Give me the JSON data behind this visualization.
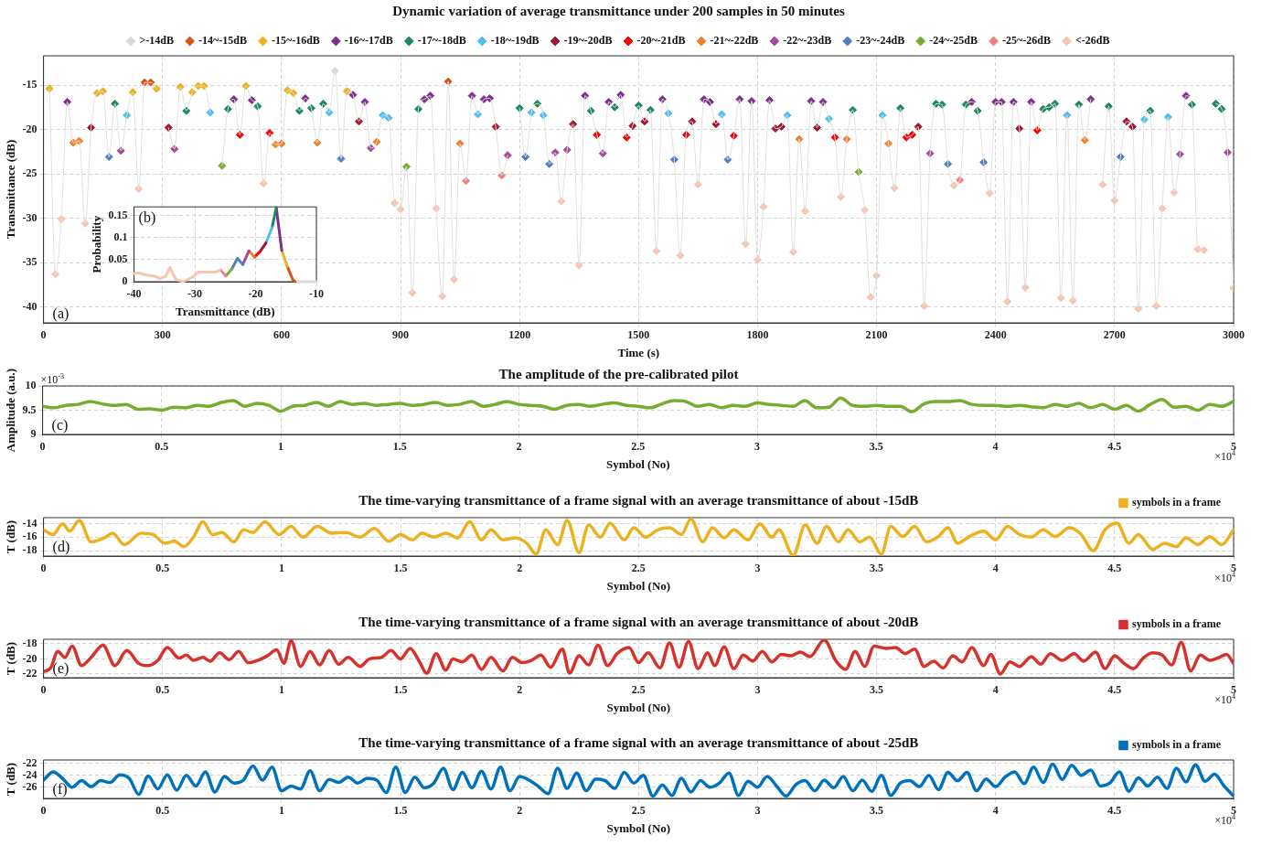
{
  "chart_data": [
    {
      "type": "scatter",
      "title": "Dynamic variation of average transmittance under 200 samples in 50 minutes",
      "xlabel": "Time (s)",
      "ylabel": "Transmittance (dB)",
      "annotations": [
        "(a)"
      ],
      "marker": "diamond",
      "grid": true,
      "legend": "top",
      "xlim": [
        0,
        3000
      ],
      "xticks": [
        0,
        300,
        600,
        900,
        1200,
        1500,
        1800,
        2100,
        2400,
        2700,
        3000
      ],
      "ylim": [
        -41.8,
        -11.7
      ],
      "yticks": [
        -40,
        -35,
        -30,
        -25,
        -20,
        -15
      ],
      "x": [
        15,
        30,
        45,
        60,
        75,
        90,
        105,
        120,
        135,
        150,
        165,
        180,
        195,
        210,
        225,
        240,
        255,
        270,
        285,
        300,
        315,
        330,
        345,
        360,
        375,
        390,
        405,
        420,
        435,
        450,
        465,
        480,
        495,
        510,
        525,
        540,
        555,
        570,
        585,
        600,
        615,
        630,
        645,
        660,
        675,
        690,
        705,
        720,
        735,
        750,
        765,
        780,
        795,
        810,
        825,
        840,
        855,
        870,
        885,
        900,
        915,
        930,
        945,
        960,
        975,
        990,
        1005,
        1020,
        1035,
        1050,
        1065,
        1080,
        1095,
        1110,
        1125,
        1140,
        1155,
        1170,
        1185,
        1200,
        1215,
        1230,
        1245,
        1260,
        1275,
        1290,
        1305,
        1320,
        1335,
        1350,
        1365,
        1380,
        1395,
        1410,
        1425,
        1440,
        1455,
        1470,
        1485,
        1500,
        1515,
        1530,
        1545,
        1560,
        1575,
        1590,
        1605,
        1620,
        1635,
        1650,
        1665,
        1680,
        1695,
        1710,
        1725,
        1740,
        1755,
        1770,
        1785,
        1800,
        1815,
        1830,
        1845,
        1860,
        1875,
        1890,
        1905,
        1920,
        1935,
        1950,
        1965,
        1980,
        1995,
        2010,
        2025,
        2040,
        2055,
        2070,
        2085,
        2100,
        2115,
        2130,
        2145,
        2160,
        2175,
        2190,
        2205,
        2220,
        2235,
        2250,
        2265,
        2280,
        2295,
        2310,
        2325,
        2340,
        2355,
        2370,
        2385,
        2400,
        2415,
        2430,
        2445,
        2460,
        2475,
        2490,
        2505,
        2520,
        2535,
        2550,
        2565,
        2580,
        2595,
        2610,
        2625,
        2640,
        2655,
        2670,
        2685,
        2700,
        2715,
        2730,
        2745,
        2760,
        2775,
        2790,
        2805,
        2820,
        2835,
        2850,
        2865,
        2880,
        2895,
        2910,
        2925,
        2940,
        2955,
        2970,
        2985,
        3000
      ],
      "series": [
        {
          "type": "line",
          "marker": "none",
          "color": "#e0e0e0",
          "values": [
            -15.4,
            -36.3,
            -30.1,
            -16.9,
            -21.5,
            -21.3,
            -30.6,
            -19.8,
            -15.9,
            -15.7,
            -23.1,
            -17.1,
            -22.4,
            -18.4,
            -15.8,
            -26.7,
            -14.7,
            -14.7,
            -15.4,
            null,
            -19.8,
            -22.2,
            -15.2,
            -17.9,
            -15.8,
            -15.1,
            -15.1,
            -18.1,
            null,
            -24.1,
            -17.7,
            -16.6,
            -20.6,
            -15.1,
            -16.7,
            -17.4,
            -26.1,
            -20.4,
            -21.7,
            -21.6,
            -15.6,
            -15.9,
            -17.9,
            -16.5,
            -17.6,
            -21.5,
            -17.1,
            -18.1,
            -13.4,
            -23.3,
            -15.7,
            -16.1,
            -19.1,
            -16.9,
            -22.1,
            -21.4,
            -18.4,
            -18.7,
            -28.3,
            -29.0,
            -24.2,
            -38.4,
            -17.7,
            -16.6,
            -16.2,
            -28.9,
            -38.8,
            -14.6,
            -36.9,
            -21.6,
            -25.8,
            -16.2,
            -18.3,
            -16.6,
            -16.5,
            -19.7,
            -25.2,
            -22.9,
            null,
            -17.6,
            -23.1,
            -18.1,
            -17.1,
            -18.4,
            -23.9,
            -22.6,
            -28.1,
            -22.3,
            -19.4,
            -35.3,
            -16.2,
            -17.9,
            -20.6,
            -22.7,
            -16.9,
            -17.5,
            -16.1,
            -20.9,
            -19.6,
            -17.3,
            -19.1,
            -17.8,
            -33.7,
            -16.6,
            -18.2,
            -23.4,
            -34.2,
            -20.6,
            -19.1,
            -26.2,
            -16.6,
            -16.9,
            -19.4,
            -18.3,
            -23.4,
            -20.7,
            -16.6,
            -32.9,
            -16.8,
            -34.7,
            -28.7,
            -16.7,
            -19.9,
            -19.7,
            -18.4,
            -33.8,
            -21.1,
            -29.2,
            -16.8,
            -19.8,
            -16.9,
            -18.8,
            -20.9,
            -27.6,
            -21.1,
            -17.8,
            -24.8,
            -29.1,
            -38.9,
            -36.5,
            -18.4,
            -21.6,
            -26.6,
            -17.6,
            -20.9,
            -20.6,
            -19.7,
            -39.9,
            -22.7,
            -17.1,
            -17.2,
            -23.9,
            -26.3,
            -25.7,
            -17.2,
            -16.9,
            -17.9,
            -23.7,
            -27.2,
            -16.9,
            -16.9,
            -39.4,
            -16.9,
            -19.9,
            -37.8,
            -16.9,
            -20.1,
            -17.7,
            -17.5,
            -17.1,
            -39.0,
            -18.4,
            -39.3,
            -17.2,
            -21.2,
            -16.6,
            null,
            -26.2,
            -17.4,
            -28.0,
            -23.1,
            -19.1,
            -19.7,
            -40.2,
            -18.9,
            -17.9,
            -39.9,
            -28.9,
            -18.6,
            -27.1,
            -22.8,
            -16.2,
            -17.2,
            -33.5,
            -33.6,
            null,
            -17.1,
            -17.7,
            -22.6,
            -37.9
          ]
        },
        {
          "name": ">-14dB",
          "color": "#d9d9d9",
          "x": [
            735
          ],
          "values": [
            -13.4
          ]
        },
        {
          "name": "-14~-15dB",
          "color": "#d95319",
          "x": [
            255,
            270,
            1020
          ],
          "values": [
            -14.7,
            -14.7,
            -14.6
          ]
        },
        {
          "name": "-15~-16dB",
          "color": "#edb120",
          "x": [
            15,
            135,
            150,
            225,
            285,
            345,
            375,
            390,
            405,
            510,
            615,
            630,
            765
          ],
          "values": [
            -15.4,
            -15.9,
            -15.7,
            -15.8,
            -15.4,
            -15.2,
            -15.8,
            -15.1,
            -15.1,
            -15.1,
            -15.6,
            -15.9,
            -15.7
          ]
        },
        {
          "name": "-16~-17dB",
          "color": "#7e2f8e",
          "x": [
            60,
            480,
            525,
            660,
            780,
            810,
            960,
            975,
            1080,
            1110,
            1125,
            1365,
            1425,
            1455,
            1560,
            1665,
            1680,
            1755,
            1785,
            1830,
            1935,
            1965,
            2340,
            2400,
            2415,
            2445,
            2490,
            2640,
            2880
          ],
          "values": [
            -16.9,
            -16.6,
            -16.7,
            -16.5,
            -16.1,
            -16.9,
            -16.6,
            -16.2,
            -16.2,
            -16.6,
            -16.5,
            -16.2,
            -16.9,
            -16.1,
            -16.6,
            -16.6,
            -16.9,
            -16.6,
            -16.8,
            -16.7,
            -16.8,
            -16.9,
            -16.9,
            -16.9,
            -16.9,
            -16.9,
            -16.9,
            -16.6,
            -16.2
          ]
        },
        {
          "name": "-17~-18dB",
          "color": "#1b8a5a",
          "x": [
            180,
            360,
            465,
            540,
            645,
            675,
            705,
            945,
            1200,
            1245,
            1380,
            1440,
            1500,
            1530,
            2040,
            2160,
            2250,
            2265,
            2325,
            2355,
            2520,
            2535,
            2550,
            2610,
            2685,
            2790,
            2895,
            2955,
            2970
          ],
          "values": [
            -17.1,
            -17.9,
            -17.7,
            -17.4,
            -17.9,
            -17.6,
            -17.1,
            -17.7,
            -17.6,
            -17.1,
            -17.9,
            -17.5,
            -17.3,
            -17.8,
            -17.8,
            -17.6,
            -17.1,
            -17.2,
            -17.2,
            -17.9,
            -17.7,
            -17.5,
            -17.1,
            -17.2,
            -17.4,
            -17.9,
            -17.2,
            -17.1,
            -17.7
          ]
        },
        {
          "name": "-18~-19dB",
          "color": "#4dbeee",
          "x": [
            210,
            420,
            720,
            855,
            870,
            1095,
            1230,
            1260,
            1575,
            1710,
            1875,
            1980,
            2115,
            2580,
            2775,
            2835
          ],
          "values": [
            -18.4,
            -18.1,
            -18.1,
            -18.4,
            -18.7,
            -18.3,
            -18.1,
            -18.4,
            -18.2,
            -18.3,
            -18.4,
            -18.8,
            -18.4,
            -18.4,
            -18.9,
            -18.6
          ]
        },
        {
          "name": "-19~-20dB",
          "color": "#a2142f",
          "x": [
            120,
            315,
            795,
            1140,
            1335,
            1485,
            1515,
            1635,
            1695,
            1845,
            1860,
            1950,
            2205,
            2460,
            2730,
            2745
          ],
          "values": [
            -19.8,
            -19.8,
            -19.1,
            -19.7,
            -19.4,
            -19.6,
            -19.1,
            -19.1,
            -19.4,
            -19.9,
            -19.7,
            -19.8,
            -19.7,
            -19.9,
            -19.1,
            -19.7
          ]
        },
        {
          "name": "-20~-21dB",
          "color": "#ff0000",
          "x": [
            495,
            570,
            1395,
            1470,
            1620,
            1740,
            1995,
            2175,
            2190,
            2505
          ],
          "values": [
            -20.6,
            -20.4,
            -20.6,
            -20.9,
            -20.6,
            -20.7,
            -20.9,
            -20.9,
            -20.6,
            -20.1
          ]
        },
        {
          "name": "-21~-22dB",
          "color": "#f4802b",
          "x": [
            75,
            90,
            585,
            600,
            690,
            840,
            1050,
            1905,
            2025,
            2130,
            2625
          ],
          "values": [
            -21.5,
            -21.3,
            -21.7,
            -21.6,
            -21.5,
            -21.4,
            -21.6,
            -21.1,
            -21.1,
            -21.6,
            -21.2
          ]
        },
        {
          "name": "-22~-23dB",
          "color": "#a24b9c",
          "x": [
            195,
            330,
            825,
            1170,
            1290,
            1320,
            1410,
            2235,
            2865,
            2985
          ],
          "values": [
            -22.4,
            -22.2,
            -22.1,
            -22.9,
            -22.6,
            -22.3,
            -22.7,
            -22.7,
            -22.8,
            -22.6
          ]
        },
        {
          "name": "-23~-24dB",
          "color": "#4f7fbf",
          "x": [
            165,
            750,
            1215,
            1275,
            1590,
            1725,
            2280,
            2370,
            2715
          ],
          "values": [
            -23.1,
            -23.3,
            -23.1,
            -23.9,
            -23.4,
            -23.4,
            -23.9,
            -23.7,
            -23.1
          ]
        },
        {
          "name": "-24~-25dB",
          "color": "#77ac30",
          "x": [
            450,
            915,
            2055
          ],
          "values": [
            -24.1,
            -24.2,
            -24.8
          ]
        },
        {
          "name": "-25~-26dB",
          "color": "#f08080",
          "x": [
            1065,
            1155,
            2310
          ],
          "values": [
            -25.8,
            -25.2,
            -25.7
          ]
        },
        {
          "name": "<-26dB",
          "color": "#f8c4ae",
          "x": [
            30,
            45,
            105,
            240,
            555,
            885,
            900,
            930,
            990,
            1005,
            1035,
            1305,
            1350,
            1545,
            1605,
            1650,
            1770,
            1800,
            1815,
            1890,
            1920,
            2010,
            2070,
            2085,
            2100,
            2145,
            2220,
            2295,
            2385,
            2430,
            2475,
            2565,
            2595,
            2670,
            2700,
            2760,
            2805,
            2820,
            2850,
            2910,
            2925,
            3000
          ],
          "values": [
            -36.3,
            -30.1,
            -30.6,
            -26.7,
            -26.1,
            -28.3,
            -29.0,
            -38.4,
            -28.9,
            -38.8,
            -36.9,
            -28.1,
            -35.3,
            -33.7,
            -34.2,
            -26.2,
            -32.9,
            -34.7,
            -28.7,
            -33.8,
            -29.2,
            -27.6,
            -29.1,
            -38.9,
            -36.5,
            -26.6,
            -39.9,
            -26.3,
            -27.2,
            -39.4,
            -37.8,
            -39.0,
            -39.3,
            -26.2,
            -28.0,
            -40.2,
            -39.9,
            -28.9,
            -27.1,
            -33.5,
            -33.6,
            -37.9
          ]
        }
      ]
    },
    {
      "type": "line",
      "xlabel": "Transmittance (dB)",
      "ylabel": "Probability",
      "annotations": [
        "(b)"
      ],
      "grid": true,
      "xlim": [
        -40,
        -10
      ],
      "xticks": [
        -40,
        -30,
        -20,
        -10
      ],
      "ylim": [
        0,
        0.17
      ],
      "yticks": [
        0,
        0.05,
        0.1,
        0.15
      ],
      "series": [
        {
          "color": "#f8c4ae",
          "x": [
            -40,
            -39.3,
            -38,
            -36.7,
            -35.7,
            -34.8,
            -34.1,
            -33.1,
            -31.9,
            -30.4,
            -29.4,
            -26.5,
            -25.8
          ],
          "values": [
            0.018,
            0.02,
            0.015,
            0.013,
            0.007,
            0.012,
            0.032,
            0.005,
            0,
            0.01,
            0.022,
            0.022,
            0.027
          ]
        },
        {
          "color": "#f08080",
          "x": [
            -25.8,
            -24.9
          ],
          "values": [
            0.027,
            0.013
          ]
        },
        {
          "color": "#77ac30",
          "x": [
            -24.9,
            -23.9
          ],
          "values": [
            0.013,
            0.029
          ]
        },
        {
          "color": "#4f7fbf",
          "x": [
            -23.9,
            -23,
            -22.1
          ],
          "values": [
            0.029,
            0.053,
            0.039
          ]
        },
        {
          "color": "#a24b9c",
          "x": [
            -22.1,
            -21.1
          ],
          "values": [
            0.039,
            0.07
          ]
        },
        {
          "color": "#f4802b",
          "x": [
            -21.1,
            -20.2
          ],
          "values": [
            0.07,
            0.056
          ]
        },
        {
          "color": "#ff0000",
          "x": [
            -20.2,
            -19.3
          ],
          "values": [
            0.056,
            0.068
          ]
        },
        {
          "color": "#a2142f",
          "x": [
            -19.3,
            -18.3
          ],
          "values": [
            0.068,
            0.088
          ]
        },
        {
          "color": "#4dbeee",
          "x": [
            -18.3,
            -17.3
          ],
          "values": [
            0.088,
            0.123
          ]
        },
        {
          "color": "#1b8a5a",
          "x": [
            -17.3,
            -16.6
          ],
          "values": [
            0.123,
            0.168
          ]
        },
        {
          "color": "#7e2f8e",
          "x": [
            -16.6,
            -15.7
          ],
          "values": [
            0.168,
            0.071
          ]
        },
        {
          "color": "#edb120",
          "x": [
            -15.7,
            -14.8
          ],
          "values": [
            0.071,
            0.035
          ]
        },
        {
          "color": "#d95319",
          "x": [
            -14.8,
            -13.9,
            -13.5
          ],
          "values": [
            0.035,
            0.005,
            0
          ]
        },
        {
          "color": "#d9d9d9",
          "x": [
            -13.5,
            -10
          ],
          "values": [
            0,
            0
          ]
        }
      ]
    },
    {
      "type": "line",
      "title": "The amplitude of the pre-calibrated pilot",
      "xlabel": "Symbol (No)",
      "ylabel": "Amplitude (a.u.)",
      "annotations": [
        "(c)",
        "×10$^{-3}$",
        "×10$^{4}$"
      ],
      "grid": true,
      "xlim": [
        0,
        5
      ],
      "xticks": [
        0,
        0.5,
        1,
        1.5,
        2,
        2.5,
        3,
        3.5,
        4,
        4.5,
        5
      ],
      "ylim": [
        9,
        10
      ],
      "yticks": [
        9,
        9.5,
        10
      ],
      "x": [
        0,
        0.05,
        0.1,
        0.15,
        0.2,
        0.25,
        0.3,
        0.35,
        0.4,
        0.45,
        0.5,
        0.55,
        0.6,
        0.65,
        0.7,
        0.75,
        0.8,
        0.85,
        0.9,
        0.95,
        1,
        1.05,
        1.1,
        1.15,
        1.2,
        1.25,
        1.3,
        1.35,
        1.4,
        1.45,
        1.5,
        1.55,
        1.6,
        1.65,
        1.7,
        1.75,
        1.8,
        1.85,
        1.9,
        1.95,
        2,
        2.05,
        2.1,
        2.15,
        2.2,
        2.25,
        2.3,
        2.35,
        2.4,
        2.45,
        2.5,
        2.55,
        2.6,
        2.65,
        2.7,
        2.75,
        2.8,
        2.85,
        2.9,
        2.95,
        3,
        3.05,
        3.1,
        3.15,
        3.2,
        3.25,
        3.3,
        3.35,
        3.4,
        3.45,
        3.5,
        3.55,
        3.6,
        3.65,
        3.7,
        3.75,
        3.8,
        3.85,
        3.9,
        3.95,
        4,
        4.05,
        4.1,
        4.15,
        4.2,
        4.25,
        4.3,
        4.35,
        4.4,
        4.45,
        4.5,
        4.55,
        4.6,
        4.65,
        4.7,
        4.75,
        4.8,
        4.85,
        4.9,
        4.95,
        5
      ],
      "series": [
        {
          "color": "#77ac30",
          "values": [
            9.58,
            9.55,
            9.6,
            9.62,
            9.68,
            9.63,
            9.6,
            9.62,
            9.52,
            9.53,
            9.5,
            9.56,
            9.55,
            9.6,
            9.58,
            9.66,
            9.7,
            9.58,
            9.64,
            9.6,
            9.48,
            9.58,
            9.6,
            9.66,
            9.58,
            9.68,
            9.62,
            9.64,
            9.6,
            9.62,
            9.64,
            9.6,
            9.62,
            9.66,
            9.6,
            9.62,
            9.68,
            9.58,
            9.62,
            9.68,
            9.62,
            9.6,
            9.58,
            9.52,
            9.6,
            9.62,
            9.58,
            9.62,
            9.65,
            9.6,
            9.58,
            9.55,
            9.63,
            9.7,
            9.68,
            9.58,
            9.62,
            9.55,
            9.6,
            9.58,
            9.65,
            9.62,
            9.6,
            9.58,
            9.7,
            9.55,
            9.56,
            9.75,
            9.6,
            9.58,
            9.6,
            9.58,
            9.58,
            9.47,
            9.63,
            9.68,
            9.68,
            9.7,
            9.62,
            9.6,
            9.6,
            9.58,
            9.6,
            9.57,
            9.55,
            9.62,
            9.58,
            9.64,
            9.55,
            9.62,
            9.52,
            9.6,
            9.48,
            9.62,
            9.72,
            9.56,
            9.58,
            9.5,
            9.62,
            9.58,
            9.68
          ]
        }
      ]
    },
    {
      "type": "line",
      "title": "The time-varying transmittance of a frame signal with an average transmittance of about -15dB",
      "xlabel": "Symbol (No)",
      "ylabel": "T (dB)",
      "annotations": [
        "(d)",
        "×10$^{4}$"
      ],
      "grid": true,
      "legend": "top right",
      "xlim": [
        0,
        5
      ],
      "xticks": [
        0,
        0.5,
        1,
        1.5,
        2,
        2.5,
        3,
        3.5,
        4,
        4.5,
        5
      ],
      "ylim": [
        -18.8,
        -13.1
      ],
      "yticks": [
        -18,
        -16,
        -14
      ],
      "series": [
        {
          "name": "symbols in a frame",
          "color": "#edb120",
          "x": [
            0,
            0.04,
            0.08,
            0.11,
            0.15,
            0.2,
            0.26,
            0.29,
            0.34,
            0.41,
            0.46,
            0.51,
            0.55,
            0.59,
            0.63,
            0.67,
            0.71,
            0.75,
            0.8,
            0.84,
            0.88,
            0.93,
            0.99,
            1.04,
            1.09,
            1.15,
            1.21,
            1.27,
            1.33,
            1.39,
            1.45,
            1.5,
            1.55,
            1.59,
            1.64,
            1.69,
            1.74,
            1.79,
            1.84,
            1.88,
            1.93,
            1.98,
            2.03,
            2.07,
            2.11,
            2.16,
            2.2,
            2.25,
            2.29,
            2.34,
            2.38,
            2.44,
            2.48,
            2.53,
            2.58,
            2.63,
            2.68,
            2.72,
            2.77,
            2.81,
            2.86,
            2.9,
            2.96,
            3.01,
            3.06,
            3.09,
            3.15,
            3.2,
            3.25,
            3.29,
            3.34,
            3.38,
            3.43,
            3.47,
            3.52,
            3.56,
            3.61,
            3.66,
            3.71,
            3.76,
            3.8,
            3.84,
            3.89,
            3.95,
            4,
            4.05,
            4.1,
            4.15,
            4.2,
            4.25,
            4.31,
            4.36,
            4.41,
            4.46,
            4.51,
            4.56,
            4.6,
            4.66,
            4.71,
            4.76,
            4.8,
            4.85,
            4.9,
            4.95,
            5
          ],
          "values": [
            -14.9,
            -15.6,
            -14.0,
            -15.1,
            -13.5,
            -16.7,
            -16.0,
            -15.4,
            -17.1,
            -15.4,
            -15.6,
            -16.9,
            -16.6,
            -17.4,
            -16.0,
            -13.7,
            -15.6,
            -15.3,
            -16.7,
            -14.9,
            -15.3,
            -13.7,
            -15.6,
            -14.4,
            -16.0,
            -14.4,
            -15.4,
            -15.3,
            -16.0,
            -14.7,
            -16.6,
            -15.6,
            -16.4,
            -15.4,
            -16.0,
            -15.4,
            -16.1,
            -13.7,
            -16.4,
            -14.9,
            -16.4,
            -16.1,
            -16.9,
            -18.5,
            -14.9,
            -17.1,
            -13.5,
            -18.3,
            -14.2,
            -16.0,
            -13.9,
            -16.4,
            -14.6,
            -16.0,
            -14.9,
            -14.6,
            -15.6,
            -13.3,
            -16.7,
            -14.6,
            -16.1,
            -14.9,
            -16.4,
            -14.0,
            -16.0,
            -14.9,
            -18.7,
            -14.2,
            -16.9,
            -14.4,
            -16.7,
            -14.9,
            -16.7,
            -16.0,
            -18.5,
            -14.4,
            -15.9,
            -14.4,
            -16.7,
            -15.9,
            -14.6,
            -16.9,
            -15.9,
            -15.1,
            -16.4,
            -14.4,
            -15.6,
            -16.0,
            -14.9,
            -15.9,
            -14.6,
            -15.6,
            -18.0,
            -14.9,
            -13.9,
            -16.9,
            -15.6,
            -17.8,
            -16.9,
            -17.4,
            -16.1,
            -17.1,
            -15.9,
            -17.1,
            -14.9
          ]
        }
      ]
    },
    {
      "type": "line",
      "title": "The time-varying transmittance of a frame signal with an average transmittance of about -20dB",
      "xlabel": "Symbol (No)",
      "ylabel": "T (dB)",
      "annotations": [
        "(e)",
        "×10$^{4}$"
      ],
      "grid": true,
      "legend": "top right",
      "xlim": [
        0,
        5
      ],
      "xticks": [
        0,
        0.5,
        1,
        1.5,
        2,
        2.5,
        3,
        3.5,
        4,
        4.5,
        5
      ],
      "ylim": [
        -22.5,
        -17.4
      ],
      "yticks": [
        -22,
        -20,
        -18
      ],
      "series": [
        {
          "name": "symbols in a frame",
          "color": "#d6322b",
          "x": [
            0,
            0.03,
            0.06,
            0.09,
            0.12,
            0.16,
            0.2,
            0.25,
            0.3,
            0.35,
            0.4,
            0.44,
            0.48,
            0.52,
            0.57,
            0.6,
            0.63,
            0.67,
            0.7,
            0.74,
            0.78,
            0.82,
            0.86,
            0.9,
            0.94,
            0.98,
            1.01,
            1.04,
            1.08,
            1.12,
            1.16,
            1.2,
            1.24,
            1.28,
            1.33,
            1.37,
            1.42,
            1.46,
            1.5,
            1.54,
            1.58,
            1.61,
            1.65,
            1.69,
            1.72,
            1.76,
            1.8,
            1.84,
            1.88,
            1.93,
            1.97,
            2.01,
            2.05,
            2.09,
            2.13,
            2.18,
            2.21,
            2.25,
            2.29,
            2.33,
            2.37,
            2.41,
            2.46,
            2.5,
            2.54,
            2.59,
            2.63,
            2.67,
            2.71,
            2.75,
            2.79,
            2.82,
            2.86,
            2.9,
            2.94,
            2.98,
            3.02,
            3.06,
            3.1,
            3.14,
            3.18,
            3.22,
            3.28,
            3.33,
            3.37,
            3.41,
            3.45,
            3.49,
            3.54,
            3.58,
            3.62,
            3.66,
            3.7,
            3.74,
            3.78,
            3.82,
            3.86,
            3.9,
            3.95,
            3.98,
            4.02,
            4.06,
            4.1,
            4.15,
            4.19,
            4.23,
            4.28,
            4.33,
            4.37,
            4.42,
            4.46,
            4.5,
            4.54,
            4.58,
            4.62,
            4.66,
            4.7,
            4.74,
            4.78,
            4.82,
            4.86,
            4.9,
            4.94,
            4.97,
            5
          ],
          "values": [
            -21.7,
            -21.2,
            -19.0,
            -19.8,
            -18.3,
            -20.9,
            -19.8,
            -18.2,
            -20.9,
            -18.9,
            -20.6,
            -20.9,
            -20.2,
            -18.5,
            -19.9,
            -19.5,
            -20.2,
            -19.8,
            -20.3,
            -19.2,
            -20.1,
            -19.0,
            -20.5,
            -20.2,
            -19.6,
            -18.8,
            -20.6,
            -17.6,
            -21.0,
            -19.0,
            -20.8,
            -18.9,
            -20.7,
            -19.8,
            -21.0,
            -20.0,
            -19.8,
            -18.9,
            -20.0,
            -18.6,
            -20.4,
            -21.9,
            -19.3,
            -21.5,
            -20.0,
            -20.4,
            -19.5,
            -21.4,
            -19.8,
            -21.6,
            -19.8,
            -20.5,
            -20.2,
            -19.5,
            -21.1,
            -18.7,
            -21.9,
            -19.6,
            -20.8,
            -18.2,
            -20.9,
            -19.3,
            -18.5,
            -20.5,
            -19.2,
            -21.2,
            -17.9,
            -21.1,
            -17.7,
            -21.3,
            -19.2,
            -20.9,
            -18.4,
            -21.3,
            -19.5,
            -20.3,
            -19.0,
            -20.4,
            -19.4,
            -19.6,
            -19.1,
            -19.7,
            -17.5,
            -20.3,
            -21.4,
            -19.0,
            -21.0,
            -18.3,
            -18.6,
            -18.5,
            -19.3,
            -18.7,
            -21.0,
            -20.3,
            -21.2,
            -19.6,
            -20.4,
            -18.5,
            -20.9,
            -19.4,
            -22.0,
            -20.4,
            -21.0,
            -19.7,
            -20.7,
            -19.3,
            -20.2,
            -19.3,
            -20.3,
            -19.1,
            -21.3,
            -19.6,
            -20.6,
            -21.3,
            -19.9,
            -19.2,
            -19.5,
            -20.8,
            -17.8,
            -21.6,
            -19.5,
            -20.2,
            -19.8,
            -19.4,
            -20.6
          ]
        }
      ]
    },
    {
      "type": "line",
      "title": "The time-varying transmittance of a frame signal with an average transmittance of about -25dB",
      "xlabel": "Symbol (No)",
      "ylabel": "T (dB)",
      "annotations": [
        "(f)",
        "×10$^{4}$"
      ],
      "grid": true,
      "legend": "top right",
      "xlim": [
        0,
        5
      ],
      "xticks": [
        0,
        0.5,
        1,
        1.5,
        2,
        2.5,
        3,
        3.5,
        4,
        4.5,
        5
      ],
      "ylim": [
        -27.9,
        -21.4
      ],
      "yticks": [
        -26,
        -24,
        -22
      ],
      "series": [
        {
          "name": "symbols in a frame",
          "color": "#0072bd",
          "x": [
            0,
            0.04,
            0.08,
            0.12,
            0.16,
            0.2,
            0.24,
            0.28,
            0.32,
            0.36,
            0.4,
            0.44,
            0.48,
            0.52,
            0.56,
            0.6,
            0.64,
            0.68,
            0.72,
            0.76,
            0.8,
            0.84,
            0.88,
            0.92,
            0.96,
            1,
            1.04,
            1.08,
            1.12,
            1.16,
            1.2,
            1.24,
            1.28,
            1.32,
            1.36,
            1.4,
            1.44,
            1.48,
            1.52,
            1.56,
            1.6,
            1.64,
            1.68,
            1.72,
            1.76,
            1.8,
            1.84,
            1.88,
            1.92,
            1.96,
            2,
            2.04,
            2.08,
            2.12,
            2.16,
            2.2,
            2.24,
            2.28,
            2.32,
            2.36,
            2.4,
            2.44,
            2.48,
            2.52,
            2.56,
            2.6,
            2.64,
            2.68,
            2.72,
            2.76,
            2.8,
            2.84,
            2.88,
            2.92,
            2.96,
            3,
            3.04,
            3.08,
            3.12,
            3.16,
            3.2,
            3.24,
            3.28,
            3.32,
            3.36,
            3.4,
            3.44,
            3.48,
            3.52,
            3.56,
            3.6,
            3.64,
            3.68,
            3.72,
            3.76,
            3.8,
            3.84,
            3.88,
            3.92,
            3.96,
            4,
            4.04,
            4.08,
            4.12,
            4.16,
            4.2,
            4.24,
            4.28,
            4.32,
            4.36,
            4.4,
            4.44,
            4.48,
            4.52,
            4.56,
            4.6,
            4.64,
            4.68,
            4.72,
            4.76,
            4.8,
            4.84,
            4.88,
            4.92,
            4.96,
            5
          ],
          "values": [
            -24.8,
            -23.4,
            -24.5,
            -26.0,
            -24.9,
            -25.9,
            -24.9,
            -25.2,
            -23.9,
            -24.5,
            -27.2,
            -24.1,
            -26.3,
            -23.9,
            -26.5,
            -24.0,
            -25.8,
            -23.4,
            -26.8,
            -24.2,
            -25.3,
            -24.8,
            -22.4,
            -24.8,
            -22.6,
            -26.6,
            -25.8,
            -26.3,
            -23.2,
            -26.6,
            -24.7,
            -25.2,
            -24.3,
            -25.3,
            -24.5,
            -24.8,
            -26.9,
            -22.6,
            -26.9,
            -24.3,
            -26.1,
            -25.3,
            -22.8,
            -26.4,
            -23.5,
            -26.1,
            -23.3,
            -26.3,
            -22.6,
            -26.6,
            -24.2,
            -24.8,
            -25.9,
            -27.1,
            -22.8,
            -26.2,
            -23.6,
            -26.6,
            -24.6,
            -24.9,
            -26.2,
            -23.5,
            -25.3,
            -24.0,
            -27.5,
            -25.6,
            -27.4,
            -24.5,
            -26.8,
            -24.9,
            -26.0,
            -25.3,
            -23.6,
            -27.4,
            -25.0,
            -26.0,
            -24.2,
            -25.8,
            -27.5,
            -25.6,
            -24.9,
            -26.6,
            -24.8,
            -26.1,
            -24.2,
            -26.6,
            -24.8,
            -26.7,
            -24.0,
            -27.4,
            -25.3,
            -24.9,
            -25.9,
            -24.0,
            -26.4,
            -23.5,
            -24.9,
            -23.5,
            -26.6,
            -24.6,
            -25.9,
            -24.3,
            -23.4,
            -25.4,
            -22.6,
            -25.2,
            -22.1,
            -24.7,
            -22.3,
            -24.0,
            -23.1,
            -25.8,
            -25.3,
            -23.4,
            -26.7,
            -24.4,
            -25.8,
            -24.3,
            -26.2,
            -22.8,
            -25.1,
            -22.2,
            -25.0,
            -23.8,
            -25.8,
            -27.5
          ]
        }
      ]
    }
  ]
}
